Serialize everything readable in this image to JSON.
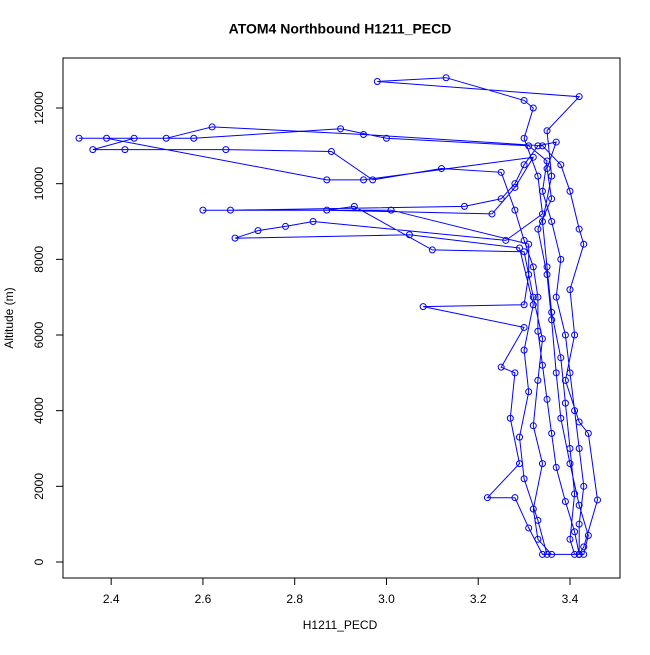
{
  "chart_data": {
    "type": "line",
    "title": "ATOM4 Northbound H1211_PECD",
    "x_label": "H1211_PECD",
    "y_label": "Altitude (m)",
    "color": "#0000ff",
    "x": [
      3.42,
      3.41,
      3.39,
      3.37,
      3.36,
      3.35,
      3.34,
      3.33,
      3.33,
      3.32,
      3.3,
      3.28,
      3.25,
      3.12,
      2.97,
      2.88,
      2.65,
      2.43,
      2.36,
      2.45,
      2.58,
      2.9,
      3.0,
      3.31,
      3.35,
      3.34,
      3.36,
      3.38,
      3.37,
      3.39,
      3.4,
      3.41,
      3.42,
      3.43,
      3.42,
      3.42,
      3.35,
      3.33,
      3.3,
      3.29,
      3.31,
      3.3,
      3.32,
      3.29,
      3.05,
      2.67,
      2.72,
      2.78,
      2.84,
      3.26,
      3.34,
      3.33,
      3.3,
      3.32,
      3.3,
      3.13,
      2.98,
      3.42,
      3.35,
      3.36,
      3.34,
      3.35,
      3.36,
      3.38,
      3.39,
      3.4,
      3.41,
      3.4,
      3.41,
      3.34,
      3.31,
      3.28,
      3.22,
      3.29,
      3.27,
      3.28,
      3.25,
      3.3,
      3.08,
      3.3,
      3.31,
      3.31,
      3.01,
      2.6,
      2.66,
      3.17,
      3.25,
      3.28,
      3.3,
      3.33,
      3.37,
      3.35,
      3.36,
      3.33,
      3.35,
      3.36,
      3.37,
      3.38,
      3.4,
      3.42,
      3.44,
      3.43,
      3.36,
      3.33,
      3.32,
      3.34,
      3.32,
      3.33,
      3.34,
      3.32,
      3.3,
      3.1,
      2.93,
      2.87,
      3.23,
      3.28,
      3.32,
      2.95,
      2.87,
      2.39,
      2.33,
      2.52,
      2.62,
      2.95,
      3.34,
      3.38,
      3.4,
      3.42,
      3.43,
      3.4,
      3.41,
      3.39,
      3.42,
      3.44,
      3.46,
      3.43,
      3.42
    ],
    "values": [
      200,
      800,
      1600,
      2500,
      3400,
      4300,
      5200,
      6100,
      7000,
      7800,
      8500,
      9300,
      10300,
      10400,
      10100,
      10850,
      10900,
      10900,
      10900,
      11200,
      11200,
      11450,
      11200,
      11000,
      10600,
      9800,
      9000,
      8000,
      7000,
      6000,
      5000,
      4000,
      3000,
      2000,
      1000,
      200,
      200,
      1100,
      2200,
      3300,
      4500,
      5600,
      6800,
      8300,
      8650,
      8560,
      8760,
      8870,
      9000,
      8500,
      9200,
      10200,
      11200,
      12000,
      12200,
      12800,
      12700,
      12300,
      11400,
      10200,
      9000,
      7800,
      6600,
      5400,
      4200,
      3000,
      1800,
      600,
      200,
      200,
      900,
      1700,
      1700,
      2600,
      3800,
      5000,
      5150,
      6200,
      6750,
      6800,
      7600,
      8400,
      9300,
      9300,
      9300,
      9400,
      9600,
      10000,
      10500,
      11000,
      11100,
      10400,
      9600,
      8800,
      7600,
      6400,
      5000,
      3800,
      2600,
      1500,
      700,
      200,
      200,
      600,
      1400,
      2600,
      3600,
      4800,
      5900,
      7000,
      8200,
      8250,
      9400,
      9300,
      9200,
      9900,
      10700,
      10100,
      10100,
      11200,
      11200,
      11200,
      11500,
      11300,
      11000,
      10500,
      9800,
      8800,
      8400,
      7200,
      6000,
      4800,
      3700,
      3400,
      1640,
      400,
      200
    ],
    "xlim": [
      2.295,
      3.509
    ],
    "ylim": [
      -423,
      13322
    ],
    "xticks": [
      2.4,
      2.6,
      2.8,
      {
        "value": 3,
        "label": "3.0"
      },
      3.2,
      3.4
    ],
    "yticks": [
      0,
      2000,
      4000,
      6000,
      8000,
      10000,
      12000
    ]
  }
}
